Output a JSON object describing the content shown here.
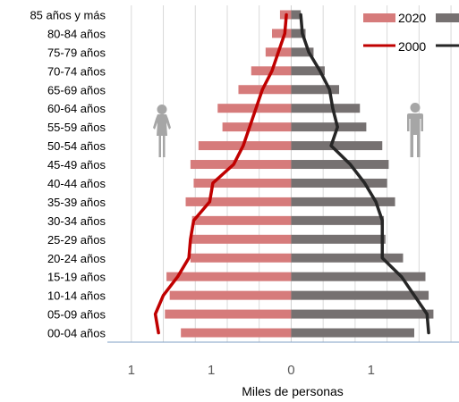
{
  "chart_data": {
    "type": "bar",
    "subtype": "population-pyramid",
    "orientation": "horizontal",
    "categories": [
      "85 años y más",
      "80-84 años",
      "75-79 años",
      "70-74 años",
      "65-69 años",
      "60-64 años",
      "55-59 años",
      "50-54 años",
      "45-49 años",
      "40-44 años",
      "35-39 años",
      "30-34 años",
      "25-29 años",
      "20-24 años",
      "15-19 años",
      "10-14 años",
      "05-09 años",
      "00-04 años"
    ],
    "series": [
      {
        "name": "2020",
        "side": "female",
        "kind": "bar",
        "color": "#d67b7b",
        "values": [
          0.07,
          0.12,
          0.16,
          0.25,
          0.33,
          0.46,
          0.43,
          0.58,
          0.63,
          0.61,
          0.66,
          0.62,
          0.63,
          0.63,
          0.78,
          0.76,
          0.79,
          0.69
        ]
      },
      {
        "name": "2020",
        "side": "male",
        "kind": "bar",
        "color": "#767171",
        "values": [
          0.06,
          0.09,
          0.14,
          0.21,
          0.3,
          0.43,
          0.47,
          0.57,
          0.61,
          0.6,
          0.65,
          0.58,
          0.59,
          0.7,
          0.84,
          0.86,
          0.89,
          0.77
        ]
      },
      {
        "name": "2000",
        "side": "female",
        "kind": "line",
        "color": "#c00000",
        "values": [
          0.03,
          0.04,
          0.08,
          0.12,
          0.18,
          0.22,
          0.26,
          0.3,
          0.36,
          0.49,
          0.51,
          0.61,
          0.63,
          0.64,
          0.71,
          0.8,
          0.85,
          0.83
        ]
      },
      {
        "name": "2000",
        "side": "male",
        "kind": "line",
        "color": "#262626",
        "values": [
          0.06,
          0.07,
          0.11,
          0.18,
          0.24,
          0.26,
          0.29,
          0.25,
          0.37,
          0.46,
          0.53,
          0.57,
          0.57,
          0.57,
          0.69,
          0.77,
          0.85,
          0.86
        ]
      }
    ],
    "x_ticks": [
      "1",
      "1",
      "0",
      "1"
    ],
    "xlabel": "Miles de personas",
    "xlim": [
      -1.15,
      1.05
    ],
    "grid": true,
    "legend_position": "top-right"
  }
}
